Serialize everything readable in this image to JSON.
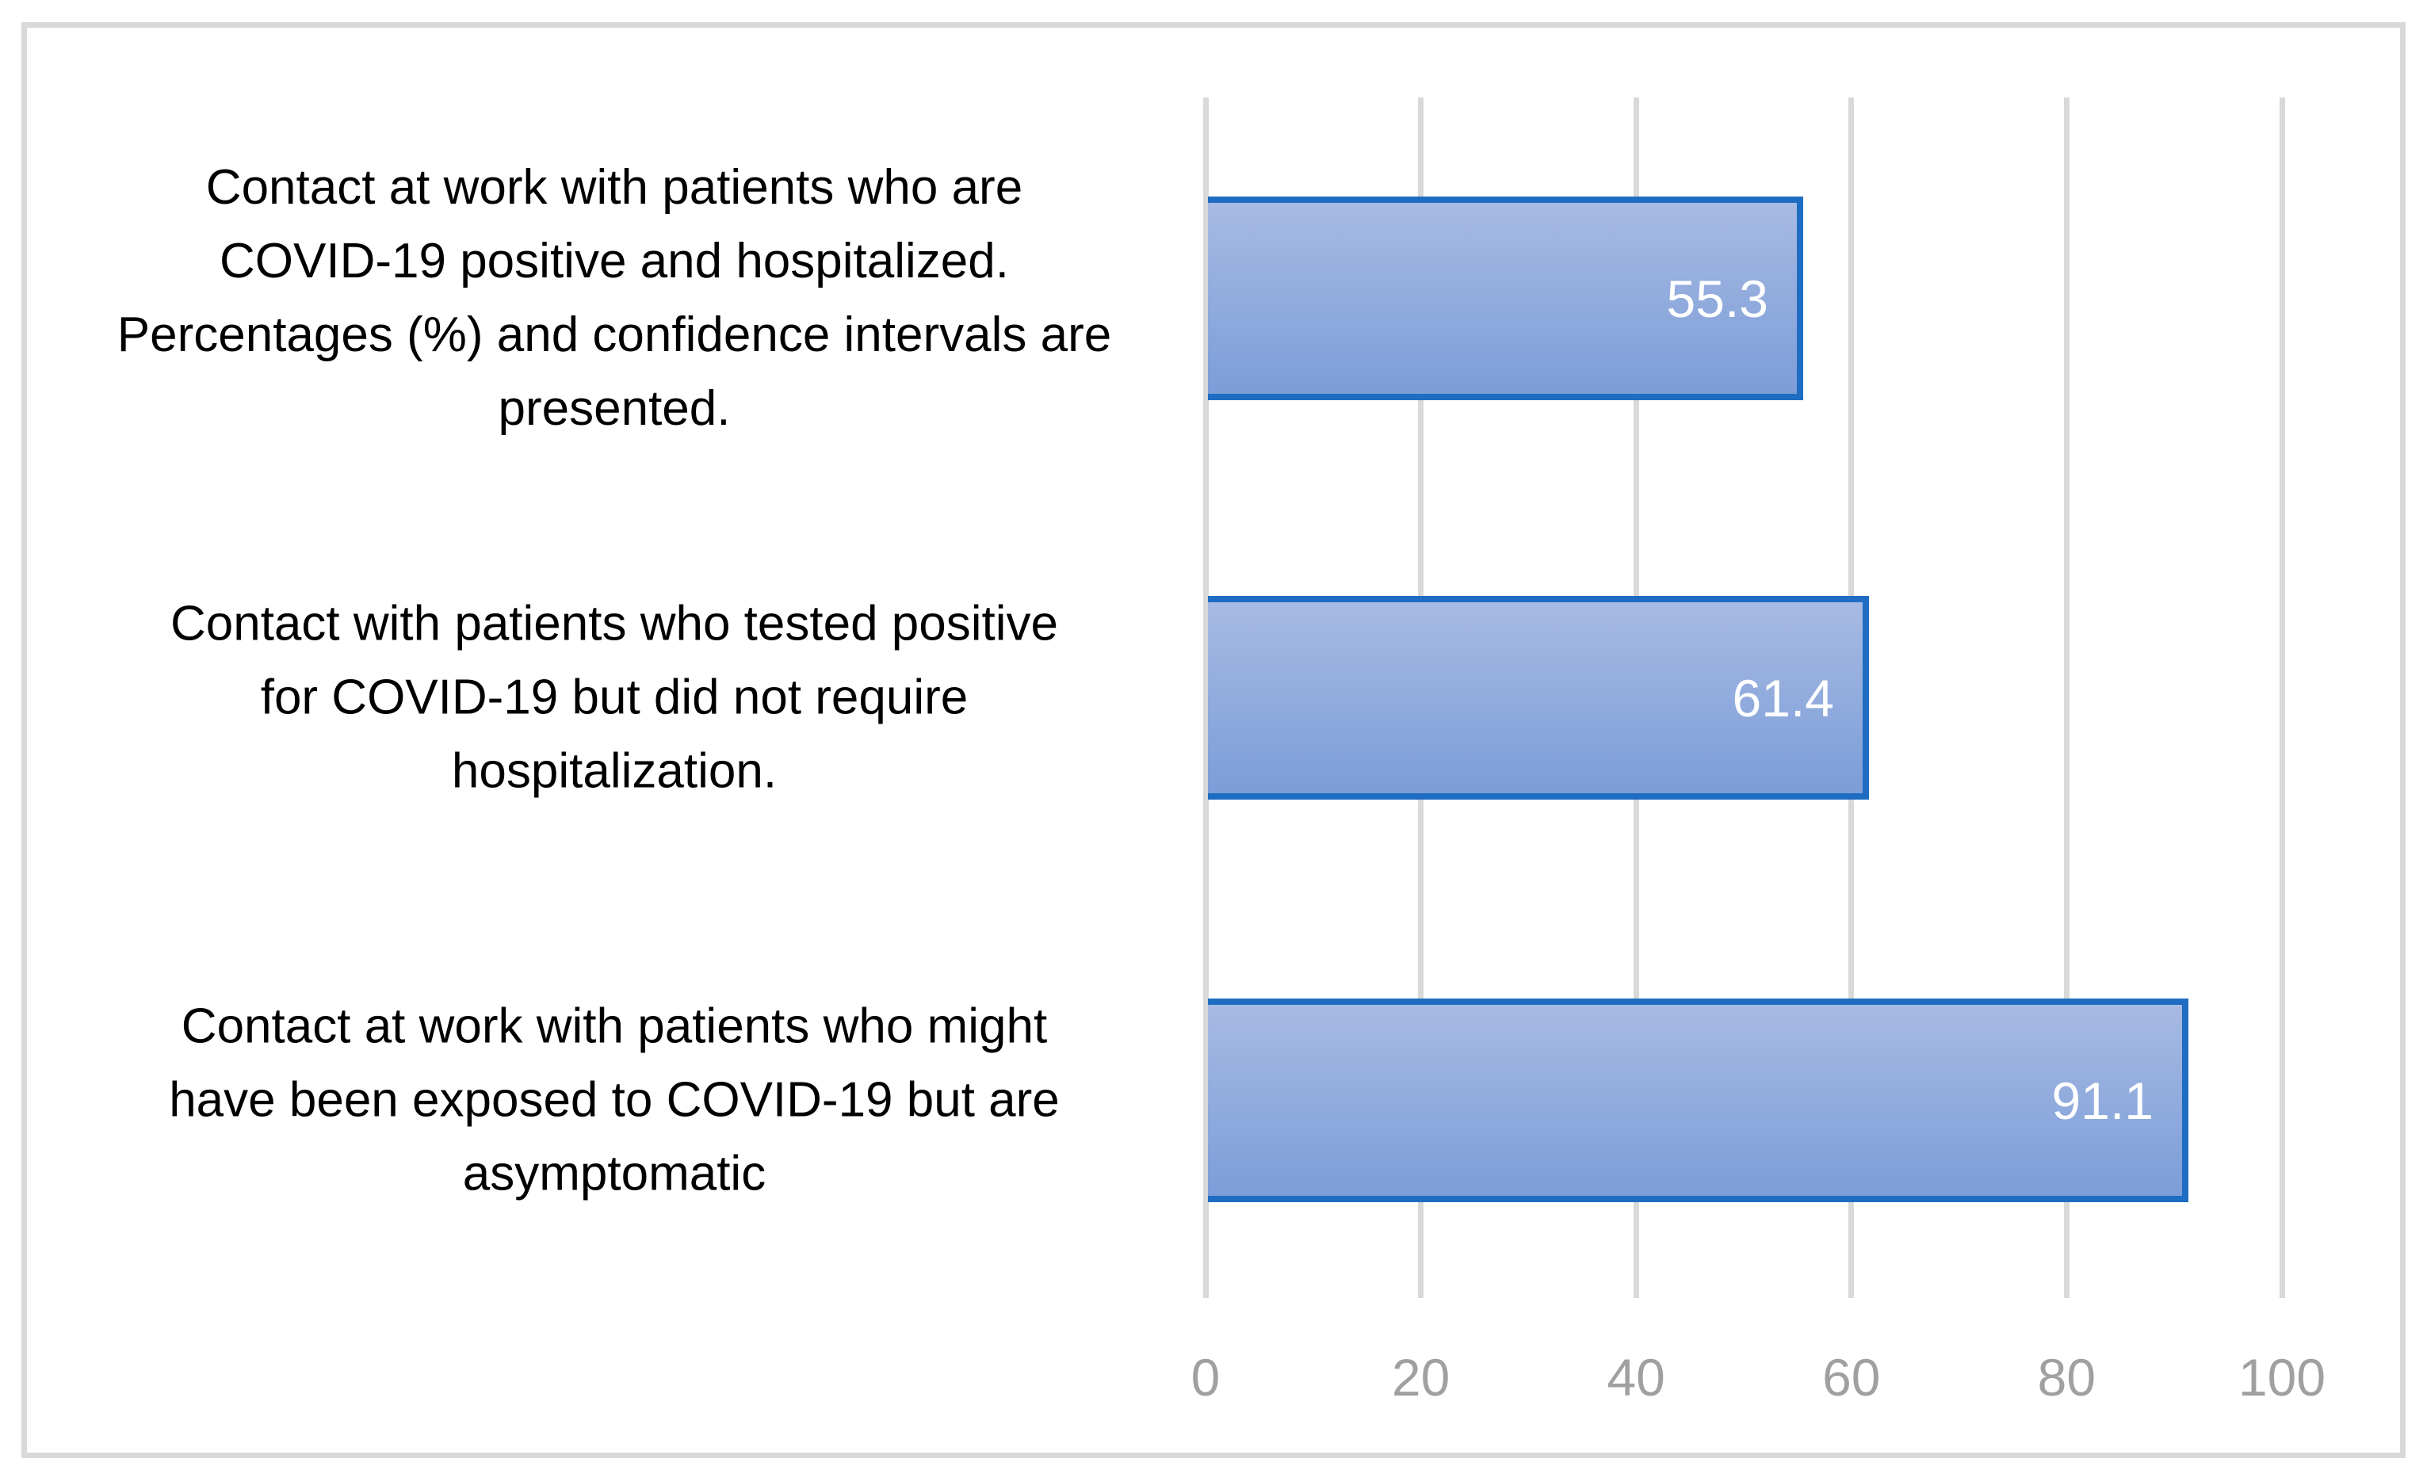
{
  "chart_data": {
    "type": "bar",
    "orientation": "horizontal",
    "title": "",
    "categories": [
      "Contact at work with patients who are COVID-19 positive and hospitalized. Percentages (%) and confidence intervals are presented.",
      "Contact with patients who tested positive for COVID-19 but did not require hospitalization.",
      "Contact at work with patients who might have been exposed to COVID-19 but are asymptomatic"
    ],
    "values": [
      55.3,
      61.4,
      91.1
    ],
    "data_labels": [
      "55.3",
      "61.4",
      "91.1"
    ],
    "xlabel": "",
    "ylabel": "",
    "xlim": [
      0,
      100
    ],
    "x_ticks": [
      0,
      20,
      40,
      60,
      80,
      100
    ],
    "grid": "vertical-major",
    "legend": "none",
    "data_label_position": "inside-end"
  },
  "axis": {
    "tick_labels": [
      "0",
      "20",
      "40",
      "60",
      "80",
      "100"
    ]
  },
  "category_labels": [
    {
      "lines": [
        "Contact at work with patients who are",
        "COVID-19 positive and hospitalized.",
        "Percentages (%) and confidence intervals are",
        "presented."
      ]
    },
    {
      "lines": [
        "Contact with patients who tested positive",
        "for COVID-19 but did not require",
        "hospitalization."
      ]
    },
    {
      "lines": [
        "Contact at work with patients who might",
        "have been exposed to COVID-19 but are",
        "asymptomatic"
      ]
    }
  ],
  "colors": {
    "background": "#FFFFFF",
    "frame_border": "#D9D9D9",
    "gridline": "#D9D9D9",
    "bar_border": "#1F6DC2",
    "bar_fill_top": "#A7BAE3",
    "bar_fill_bottom": "#7C9DD8",
    "tick_text": "#A0A0A0",
    "label_text": "#000000",
    "data_label_text": "#FFFFFF"
  }
}
